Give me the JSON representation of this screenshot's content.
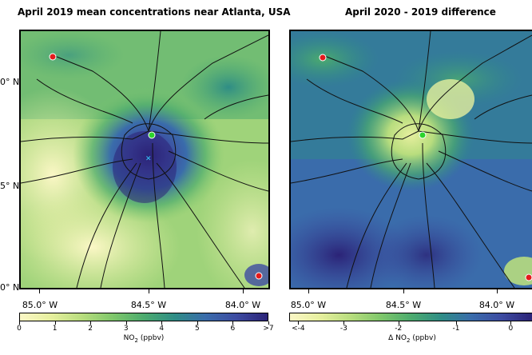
{
  "left_panel": {
    "title": "April 2019 mean concentrations near Atlanta, USA",
    "colorbar": {
      "ticks": [
        "0",
        "1",
        "2",
        "3",
        "4",
        "5",
        "6",
        ">7"
      ],
      "label": "NO2 (ppbv)",
      "colors": [
        "#fbf7c6",
        "#e6ef9e",
        "#b8dd7e",
        "#7fc76b",
        "#4cab6e",
        "#2f8d86",
        "#3a6cab",
        "#3d4ba1",
        "#2b2377"
      ]
    },
    "lat_labels": [
      "0° N",
      "5° N",
      "0° N"
    ],
    "lon_labels": [
      "85.0° W",
      "84.5° W",
      "84.0° W"
    ]
  },
  "right_panel": {
    "title": "April 2020 - 2019 difference",
    "colorbar": {
      "ticks": [
        "<-4",
        "-3",
        "-2",
        "-1",
        "0"
      ],
      "label": "Δ NO2 (ppbv)",
      "colors": [
        "#fbf7c6",
        "#e6ef9e",
        "#b8dd7e",
        "#7fc76b",
        "#4cab6e",
        "#2f8d86",
        "#3a6cab",
        "#3d4ba1",
        "#2b2377"
      ]
    },
    "lon_labels": [
      "85.0° W",
      "84.5° W",
      "84.0° W"
    ]
  }
}
